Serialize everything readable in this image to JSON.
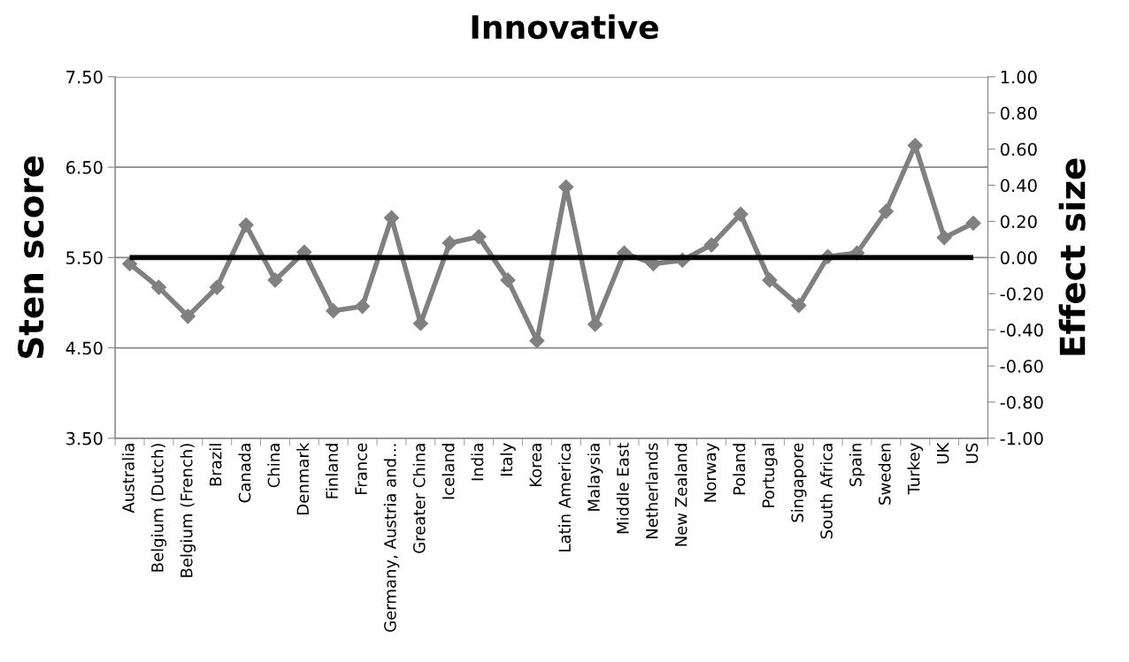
{
  "chart_data": {
    "type": "line",
    "title": "Innovative",
    "ylabel": "Sten score",
    "y2label": "Effect size",
    "categories": [
      "Australia",
      "Belgium (Dutch)",
      "Belgium (French)",
      "Brazil",
      "Canada",
      "China",
      "Denmark",
      "Finland",
      "France",
      "Germany, Austria and...",
      "Greater China",
      "Iceland",
      "India",
      "Italy",
      "Korea",
      "Latin America",
      "Malaysia",
      "Middle East",
      "Netherlands",
      "New Zealand",
      "Norway",
      "Poland",
      "Portugal",
      "Singapore",
      "South Africa",
      "Spain",
      "Sweden",
      "Turkey",
      "UK",
      "US"
    ],
    "series": [
      {
        "color": "#808080",
        "values": [
          5.43,
          5.17,
          4.85,
          5.17,
          5.86,
          5.25,
          5.56,
          4.91,
          4.96,
          5.94,
          4.77,
          5.66,
          5.73,
          5.25,
          4.58,
          6.28,
          4.76,
          5.55,
          5.43,
          5.47,
          5.64,
          5.98,
          5.25,
          4.97,
          5.51,
          5.55,
          6.01,
          6.74,
          5.72,
          5.88
        ]
      }
    ],
    "marker": "diamond",
    "line_style": "solid",
    "grid": "y",
    "ylim": [
      3.5,
      7.5
    ],
    "yticks": [
      {
        "value": 3.5,
        "label": "3.50"
      },
      {
        "value": 4.5,
        "label": "4.50"
      },
      {
        "value": 5.5,
        "label": "5.50"
      },
      {
        "value": 6.5,
        "label": "6.50"
      },
      {
        "value": 7.5,
        "label": "7.50"
      }
    ],
    "y2lim": [
      -1,
      1
    ],
    "y2ticks": [
      {
        "value": -1,
        "label": "-1.00"
      },
      {
        "value": -0.8,
        "label": "-0.80"
      },
      {
        "value": -0.6,
        "label": "-0.60"
      },
      {
        "value": -0.4,
        "label": "-0.40"
      },
      {
        "value": -0.2,
        "label": "-0.20"
      },
      {
        "value": 0,
        "label": "0.00"
      },
      {
        "value": 0.2,
        "label": "0.20"
      },
      {
        "value": 0.4,
        "label": "0.40"
      },
      {
        "value": 0.6,
        "label": "0.60"
      },
      {
        "value": 0.8,
        "label": "0.80"
      },
      {
        "value": 1,
        "label": "1.00"
      }
    ],
    "ref_lines": [
      {
        "axis": "y",
        "value": 5.5,
        "color": "#000000",
        "line_style": "solid"
      }
    ]
  }
}
